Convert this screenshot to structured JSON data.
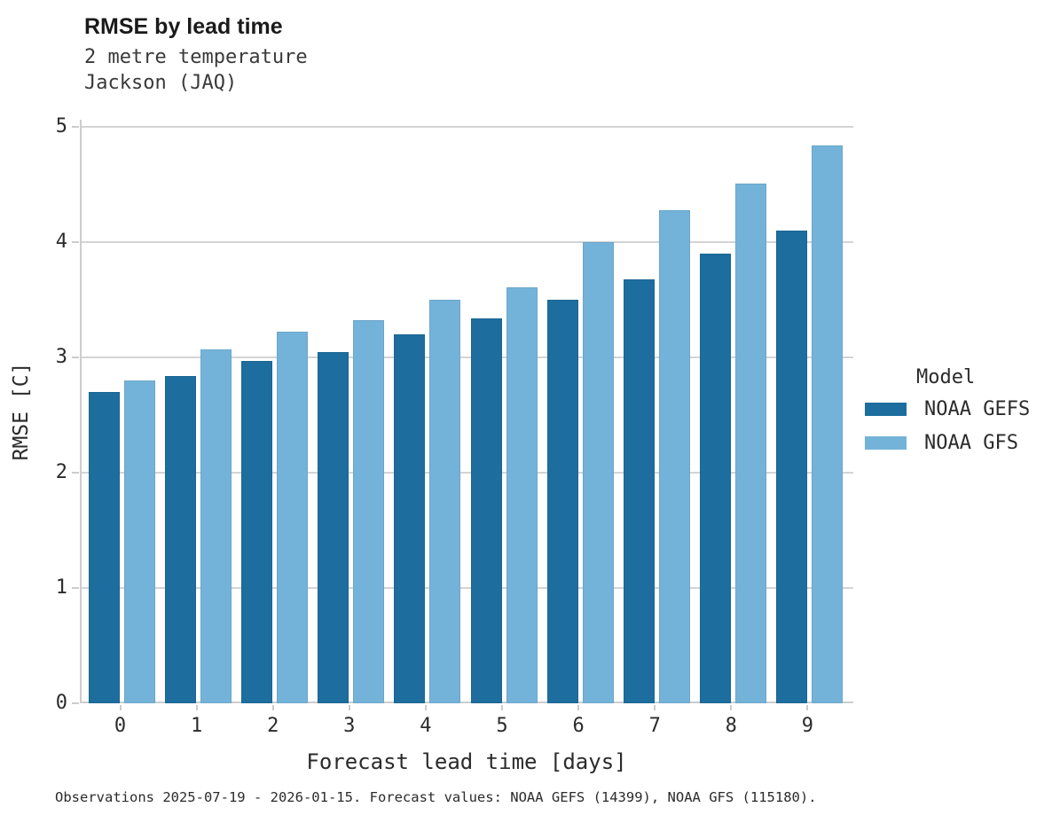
{
  "header": {
    "title": "RMSE by lead time",
    "subtitle_line1": "2 metre temperature",
    "subtitle_line2": "Jackson (JAQ)"
  },
  "chart_data": {
    "type": "bar",
    "title": "RMSE by lead time",
    "subtitle": [
      "2 metre temperature",
      "Jackson (JAQ)"
    ],
    "categories": [
      "0",
      "1",
      "2",
      "3",
      "4",
      "5",
      "6",
      "7",
      "8",
      "9"
    ],
    "series": [
      {
        "name": "NOAA GEFS",
        "color": "#1d6e9e",
        "values": [
          2.7,
          2.84,
          2.97,
          3.05,
          3.2,
          3.34,
          3.5,
          3.68,
          3.9,
          4.1
        ]
      },
      {
        "name": "NOAA GFS",
        "color": "#74b3d9",
        "values": [
          2.8,
          3.07,
          3.22,
          3.32,
          3.5,
          3.61,
          4.0,
          4.28,
          4.51,
          4.84
        ]
      }
    ],
    "xlabel": "Forecast lead time [days]",
    "ylabel": "RMSE [C]",
    "ylim": [
      0,
      5
    ],
    "yticks": [
      0,
      1,
      2,
      3,
      4,
      5
    ],
    "grid": "horizontal",
    "legend_title": "Model",
    "legend_position": "right"
  },
  "legend": {
    "title": "Model",
    "items": [
      {
        "label": "NOAA GEFS",
        "color": "#1d6e9e"
      },
      {
        "label": "NOAA GFS",
        "color": "#74b3d9"
      }
    ]
  },
  "footer": {
    "caption": "Observations 2025-07-19 - 2026-01-15. Forecast values: NOAA GEFS (14399), NOAA GFS (115180)."
  },
  "colors": {
    "gridline": "#d4d4d4",
    "spine": "#cccccc",
    "text": "#2b2b2b",
    "title": "#1a1a1a"
  }
}
